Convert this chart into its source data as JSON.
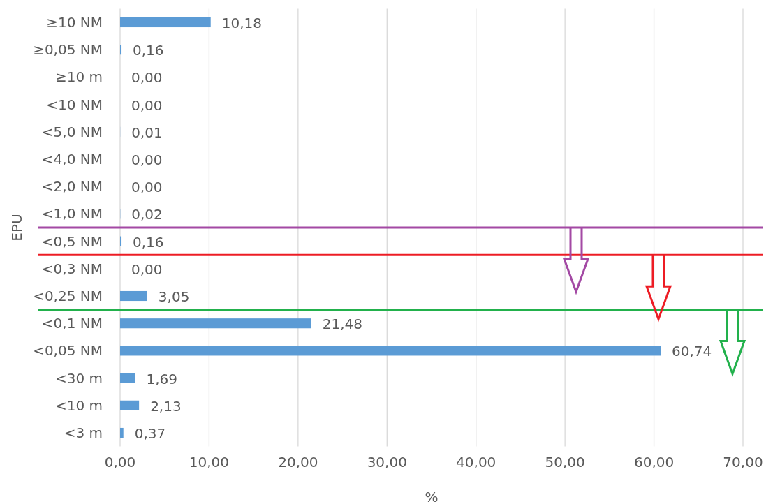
{
  "chart_data": {
    "type": "bar",
    "orientation": "horizontal",
    "categories": [
      "≥10 NM",
      "≥0,05 NM",
      "≥10 m",
      "<10 NM",
      "<5,0 NM",
      "<4,0 NM",
      "<2,0 NM",
      "<1,0 NM",
      "<0,5 NM",
      "<0,3 NM",
      "<0,25 NM",
      "<0,1 NM",
      "<0,05 NM",
      "<30 m",
      "<10 m",
      "<3 m"
    ],
    "values": [
      10.18,
      0.16,
      0,
      0,
      0.01,
      0,
      0,
      0.02,
      0.16,
      0,
      3.05,
      21.48,
      60.74,
      1.69,
      2.13,
      0.37
    ],
    "value_labels": [
      "10,18",
      "0,16",
      "0,00",
      "0,00",
      "0,01",
      "0,00",
      "0,00",
      "0,02",
      "0,16",
      "0,00",
      "3,05",
      "21,48",
      "60,74",
      "1,69",
      "2,13",
      "0,37"
    ],
    "color": "#5b9bd5",
    "xlim": [
      0,
      70
    ],
    "xticks": [
      {
        "value": 0,
        "label": "0,00"
      },
      {
        "value": 10,
        "label": "10,00"
      },
      {
        "value": 20,
        "label": "20,00"
      },
      {
        "value": 30,
        "label": "30,00"
      },
      {
        "value": 40,
        "label": "40,00"
      },
      {
        "value": 50,
        "label": "50,00"
      },
      {
        "value": 60,
        "label": "60,00"
      },
      {
        "value": 70,
        "label": "70,00"
      }
    ],
    "xlabel": "%",
    "ylabel": "EPU",
    "grid": "x",
    "ref_lines": [
      {
        "axis": "y",
        "value": "<0,5 NM",
        "color": "#a349a4"
      },
      {
        "axis": "y",
        "value": "<0,3 NM",
        "color": "#ed1c24"
      },
      {
        "axis": "y",
        "value": "<0,1 NM",
        "color": "#22b14c"
      }
    ]
  }
}
